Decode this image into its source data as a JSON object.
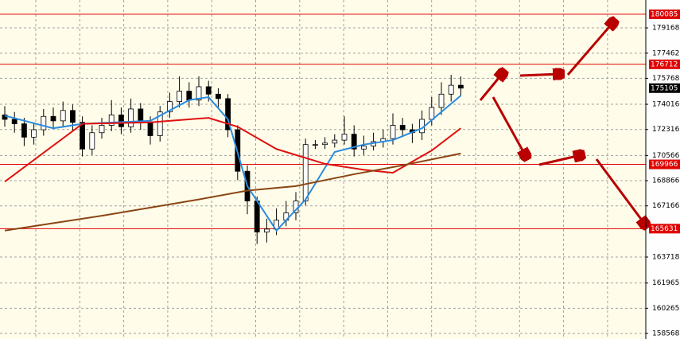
{
  "chart_data": {
    "type": "candlestick",
    "open": [
      173300,
      173000,
      172700,
      171800,
      172300,
      173200,
      172900,
      173600,
      172800,
      171000,
      172100,
      172600,
      173300,
      172500,
      173700,
      172800,
      171900,
      173500,
      174200,
      174900,
      174300,
      175200,
      174700,
      174400,
      172300,
      169500,
      167500,
      165400,
      165600,
      166200,
      166700,
      167500,
      171300,
      171300,
      171400,
      171600,
      172000,
      171000,
      171200,
      171500,
      171700,
      172600,
      172300,
      172100,
      173000,
      173800,
      174700,
      175300
    ],
    "high": [
      173900,
      173500,
      173100,
      172800,
      173700,
      173800,
      174200,
      174000,
      173200,
      172600,
      173100,
      174300,
      173800,
      174400,
      174100,
      173200,
      173900,
      174800,
      175900,
      175500,
      175900,
      175600,
      175100,
      174700,
      172600,
      169900,
      167800,
      166300,
      167000,
      167500,
      168100,
      171700,
      171600,
      171800,
      172000,
      173200,
      172600,
      171900,
      172100,
      172300,
      173400,
      173100,
      172700,
      173600,
      174500,
      175500,
      176000,
      175900
    ],
    "low": [
      172500,
      172100,
      171200,
      171300,
      171900,
      172400,
      172500,
      172200,
      170500,
      170600,
      171700,
      172200,
      172000,
      172100,
      172300,
      171300,
      171500,
      173100,
      173800,
      173800,
      173900,
      174200,
      173800,
      171800,
      168900,
      166600,
      164600,
      164700,
      165200,
      165800,
      166200,
      167200,
      171000,
      171000,
      171100,
      171300,
      170500,
      170600,
      170900,
      171100,
      171300,
      171800,
      171400,
      171600,
      172600,
      173300,
      174200,
      174600
    ],
    "close": [
      173000,
      172700,
      171800,
      172300,
      173200,
      172900,
      173600,
      172800,
      171000,
      172100,
      172600,
      173300,
      172500,
      173700,
      172800,
      171900,
      173500,
      174200,
      174900,
      174300,
      175200,
      174700,
      174400,
      172300,
      169500,
      167500,
      165400,
      165600,
      166200,
      166700,
      167500,
      171300,
      171300,
      171400,
      171600,
      172000,
      171000,
      171200,
      171500,
      171700,
      172600,
      172300,
      172100,
      173000,
      173800,
      174700,
      175300,
      175105
    ],
    "series": [
      {
        "color": "#2a8be0",
        "x": [
          0,
          5,
          8,
          15,
          19,
          21,
          23,
          25,
          28,
          31,
          34,
          37,
          40,
          43,
          47
        ],
        "values": [
          173250,
          172400,
          172700,
          172900,
          174300,
          174500,
          173000,
          168500,
          165500,
          167600,
          170800,
          171300,
          171600,
          172400,
          174600
        ]
      },
      {
        "color": "#e01010",
        "x": [
          0,
          8,
          15,
          21,
          24,
          28,
          33,
          37,
          40,
          44,
          47
        ],
        "values": [
          168800,
          172700,
          172800,
          173100,
          172500,
          171000,
          170000,
          169600,
          169400,
          170900,
          172400
        ]
      },
      {
        "color": "#8b4513",
        "x": [
          0,
          10,
          20,
          25,
          30,
          36,
          41,
          47
        ],
        "values": [
          165500,
          166500,
          167600,
          168200,
          168500,
          169300,
          169900,
          170700
        ]
      }
    ],
    "levels": [
      180085,
      176712,
      169966,
      165631
    ],
    "level_color": "#e00000",
    "last_price": 175105,
    "ylim": [
      158192,
      181047
    ],
    "yticks": [
      158568,
      160265,
      161965,
      163718,
      167166,
      168866,
      170566,
      172316,
      174016,
      175768,
      177462,
      179168
    ],
    "grid": true
  }
}
